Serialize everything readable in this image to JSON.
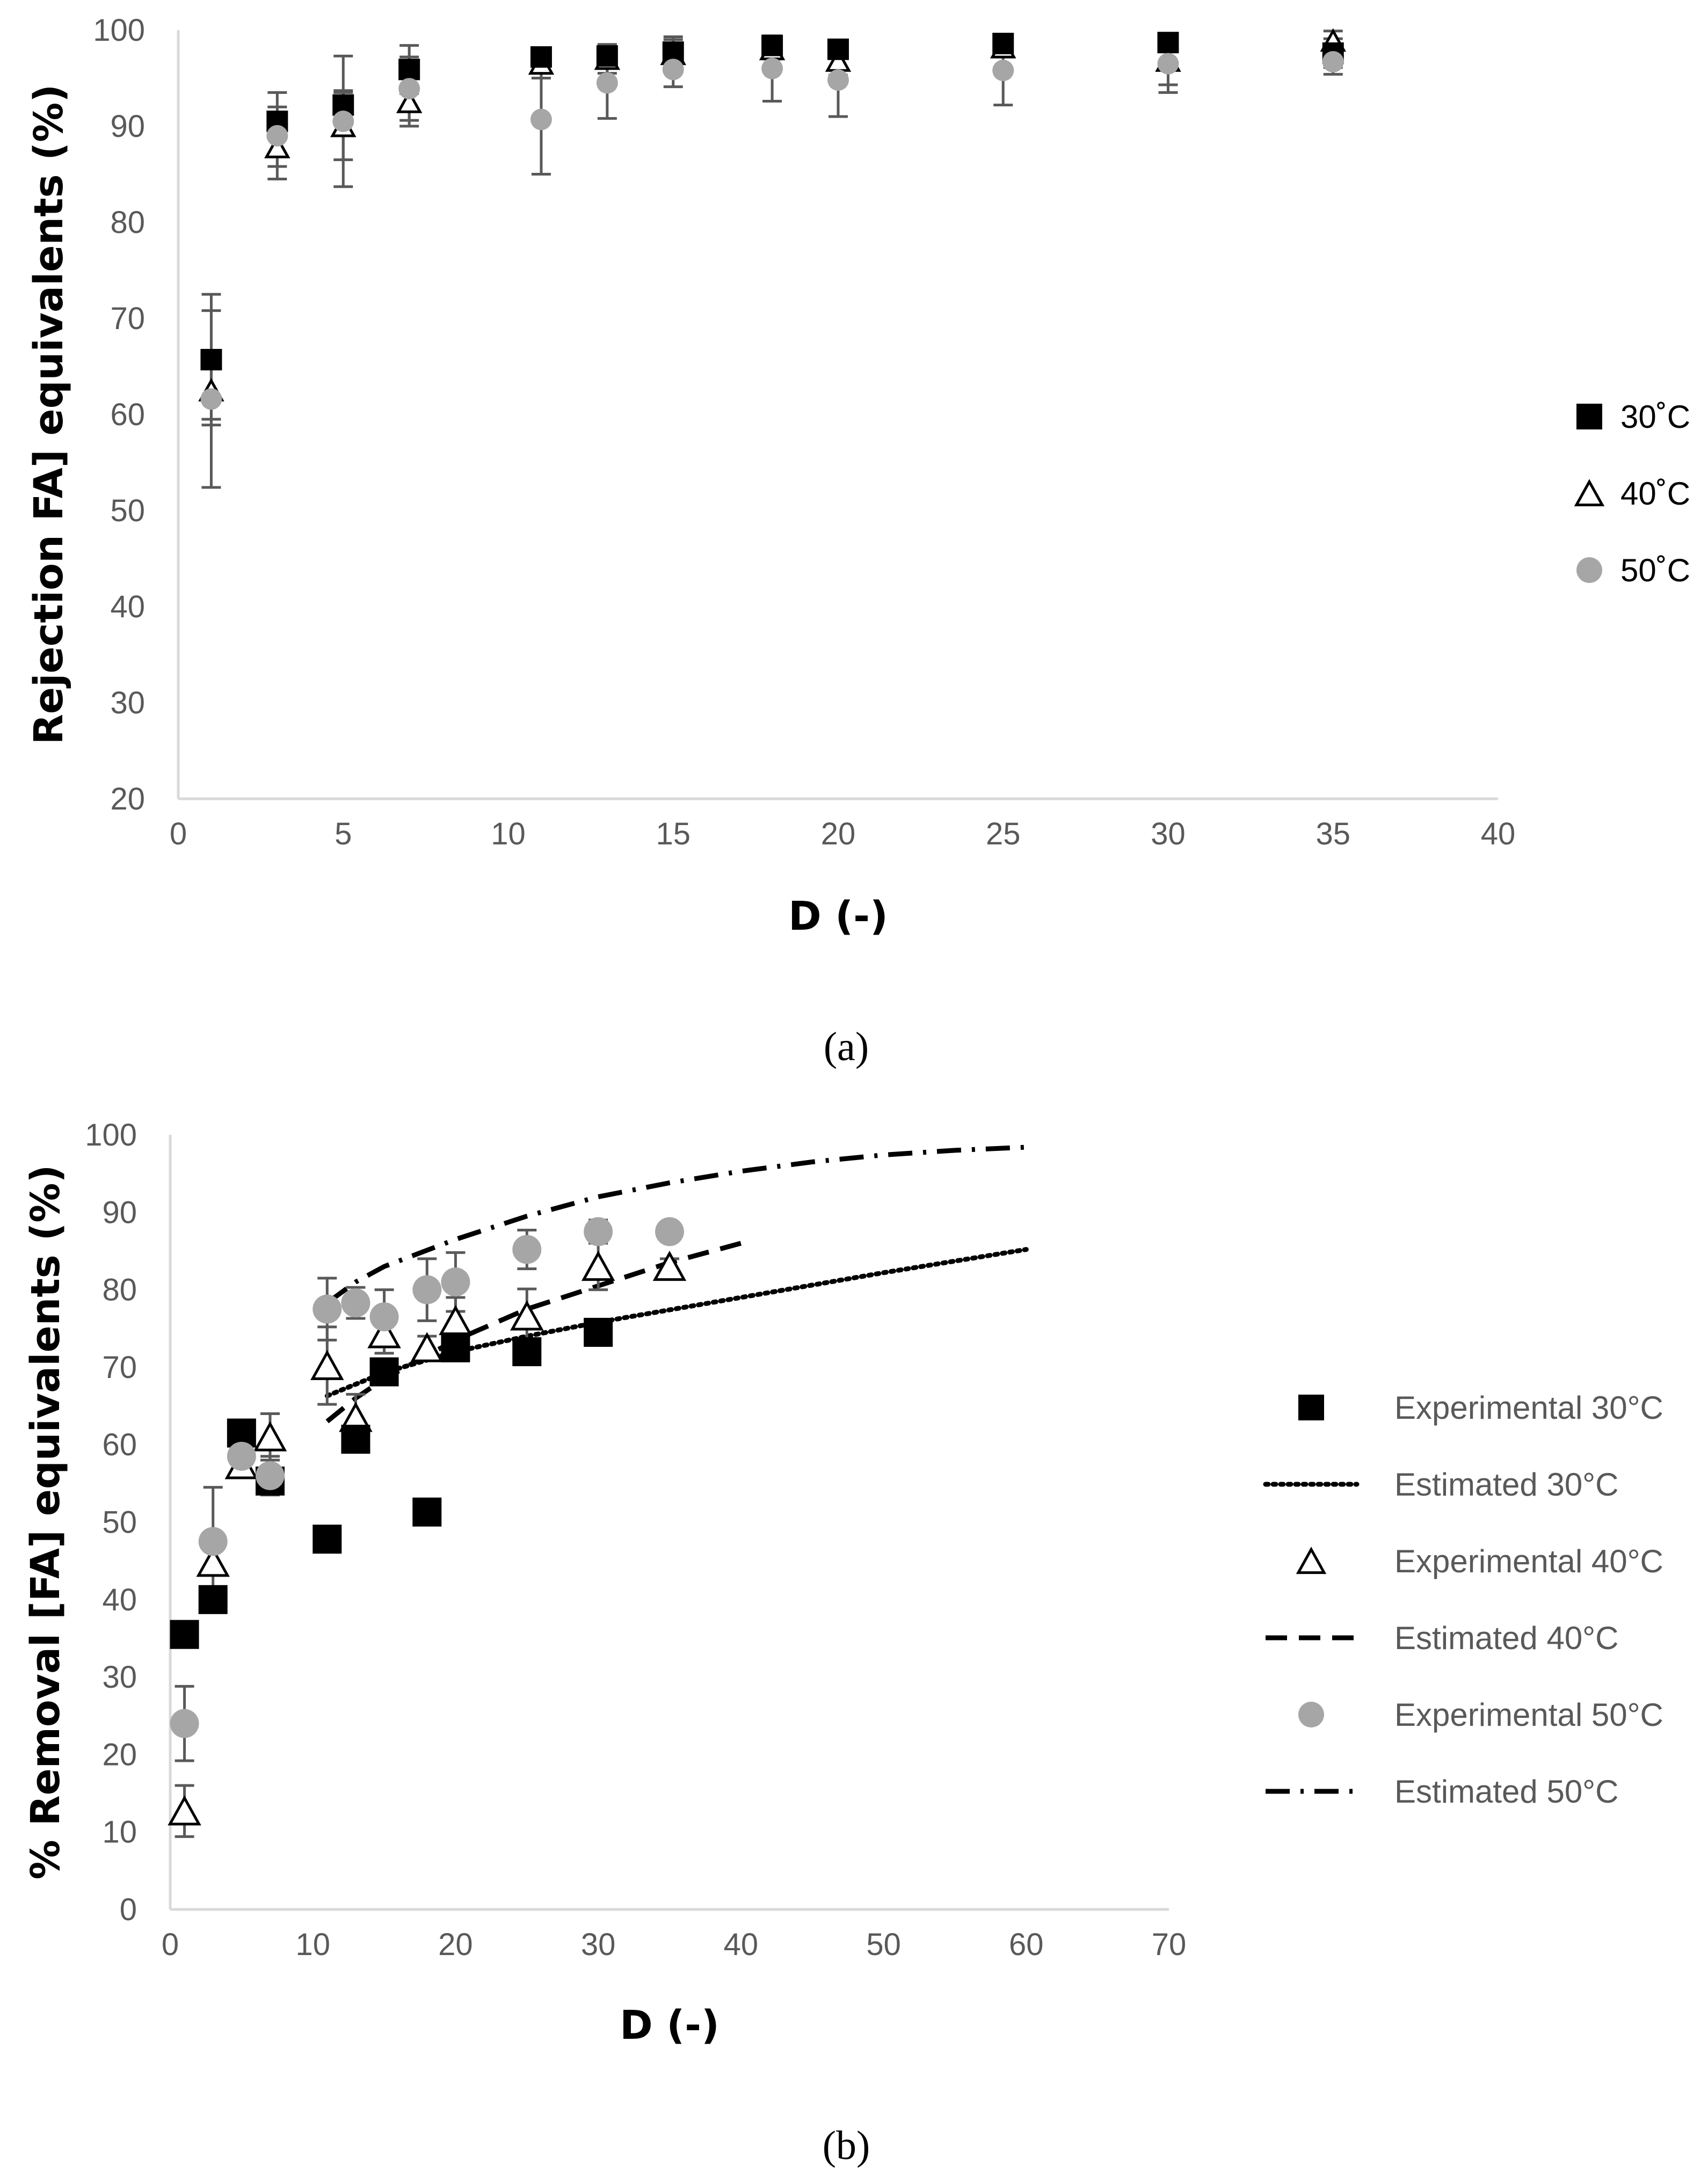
{
  "chart_data": [
    {
      "type": "scatter",
      "panel_label": "(a)",
      "xlabel": "D (-)",
      "ylabel": "Rejection FA] equivalents (%)",
      "xlim": [
        0,
        40
      ],
      "ylim": [
        20,
        100
      ],
      "x_ticks": [
        0,
        5,
        10,
        15,
        20,
        25,
        30,
        35,
        40
      ],
      "y_ticks": [
        20,
        30,
        40,
        50,
        60,
        70,
        80,
        90,
        100
      ],
      "grid": false,
      "legend_position": "right",
      "series": [
        {
          "name": "30˚C",
          "marker": "square",
          "color": "#000000",
          "x": [
            1,
            3,
            5,
            7,
            11,
            13,
            15,
            18,
            20,
            25,
            30,
            35
          ],
          "y": [
            65.7,
            90.5,
            92.2,
            95.9,
            97.2,
            97.3,
            97.7,
            98.4,
            98.0,
            98.6,
            98.7,
            97.6
          ],
          "err": [
            6.8,
            1.5,
            1.5,
            2.5,
            0.8,
            1.2,
            1.6,
            0.5,
            0.5,
            0.5,
            0.7,
            1.5
          ]
        },
        {
          "name": "40˚C",
          "marker": "triangle-open",
          "color": "#000000",
          "x": [
            1,
            3,
            5,
            7,
            11,
            13,
            15,
            18,
            20,
            25,
            30,
            35
          ],
          "y": [
            62.5,
            87.8,
            90.0,
            92.5,
            96.5,
            97.0,
            97.5,
            98.0,
            96.8,
            98.2,
            96.8,
            98.9
          ],
          "err": [
            3.0,
            2.0,
            3.5,
            2.5,
            1.5,
            1.5,
            1.5,
            1.0,
            1.5,
            1.0,
            2.5,
            1.0
          ]
        },
        {
          "name": "50˚C",
          "marker": "circle",
          "color": "#a6a6a6",
          "x": [
            1,
            3,
            5,
            7,
            11,
            13,
            15,
            18,
            20,
            25,
            30,
            35
          ],
          "y": [
            61.6,
            89.0,
            90.5,
            93.9,
            90.7,
            94.5,
            95.9,
            96.0,
            94.8,
            95.8,
            96.5,
            96.7
          ],
          "err": [
            9.2,
            4.5,
            6.8,
            3.3,
            5.7,
            3.7,
            1.8,
            3.4,
            3.8,
            3.6,
            3.0,
            1.3
          ]
        }
      ]
    },
    {
      "type": "scatter",
      "panel_label": "(b)",
      "xlabel": "D (-)",
      "ylabel": "% Removal [FA] equivalents (%)",
      "xlim": [
        0,
        70
      ],
      "ylim": [
        0,
        100
      ],
      "x_ticks": [
        0,
        10,
        20,
        30,
        40,
        50,
        60,
        70
      ],
      "y_ticks": [
        0,
        10,
        20,
        30,
        40,
        50,
        60,
        70,
        80,
        90,
        100
      ],
      "grid": false,
      "legend_position": "right",
      "series": [
        {
          "name": "Experimental 30°C",
          "kind": "points",
          "marker": "square",
          "color": "#000000",
          "x": [
            1,
            3,
            5,
            7,
            11,
            13,
            15,
            18,
            20,
            25,
            30
          ],
          "y": [
            35.5,
            40.0,
            61.5,
            55.3,
            47.8,
            60.7,
            69.4,
            51.3,
            72.5,
            72.0,
            74.5
          ],
          "err": [
            0,
            0,
            0,
            0,
            0,
            0,
            0,
            0,
            0,
            0,
            0
          ]
        },
        {
          "name": "Estimated 30°C",
          "kind": "line",
          "dash": "dotted",
          "color": "#000000",
          "x": [
            11,
            15,
            20,
            25,
            30,
            35,
            40,
            45,
            50,
            55,
            60
          ],
          "y": [
            66.3,
            69.3,
            72.0,
            74.0,
            75.8,
            77.4,
            79.0,
            80.6,
            82.2,
            83.7,
            85.2
          ]
        },
        {
          "name": "Experimental 40°C",
          "kind": "points",
          "marker": "triangle-open",
          "color": "#000000",
          "x": [
            1,
            3,
            5,
            7,
            11,
            13,
            15,
            18,
            20,
            25,
            30,
            35
          ],
          "y": [
            12.7,
            44.8,
            57.4,
            61.0,
            70.2,
            63.5,
            74.3,
            72.5,
            76.0,
            76.6,
            83.0,
            83.0
          ],
          "err": [
            3.3,
            1.5,
            1.5,
            3.0,
            5.0,
            3.0,
            2.5,
            1.5,
            3.0,
            3.5,
            3.0,
            1.0
          ]
        },
        {
          "name": "Estimated 40°C",
          "kind": "line",
          "dash": "dashed",
          "color": "#000000",
          "x": [
            11,
            13,
            15,
            20,
            25,
            30,
            35,
            40
          ],
          "y": [
            63.0,
            66.0,
            68.5,
            73.5,
            77.5,
            80.5,
            83.5,
            86.0
          ]
        },
        {
          "name": "Experimental 50°C",
          "kind": "points",
          "marker": "circle",
          "color": "#a6a6a6",
          "x": [
            1,
            3,
            5,
            7,
            11,
            13,
            15,
            18,
            20,
            25,
            30,
            35
          ],
          "y": [
            24.0,
            47.5,
            58.5,
            56.0,
            77.5,
            78.3,
            76.5,
            80.0,
            81.0,
            85.2,
            87.5,
            87.5
          ],
          "err": [
            4.8,
            7.0,
            2.5,
            2.5,
            4.0,
            2.0,
            3.5,
            4.0,
            3.8,
            2.5,
            1.5,
            0.8
          ]
        },
        {
          "name": "Estimated 50°C",
          "kind": "line",
          "dash": "dash-dot",
          "color": "#000000",
          "x": [
            11,
            13,
            15,
            20,
            25,
            30,
            35,
            40,
            45,
            50,
            55,
            60
          ],
          "y": [
            78.3,
            81.0,
            83.0,
            86.5,
            89.5,
            92.0,
            93.8,
            95.3,
            96.5,
            97.4,
            98.0,
            98.4
          ]
        }
      ]
    }
  ]
}
